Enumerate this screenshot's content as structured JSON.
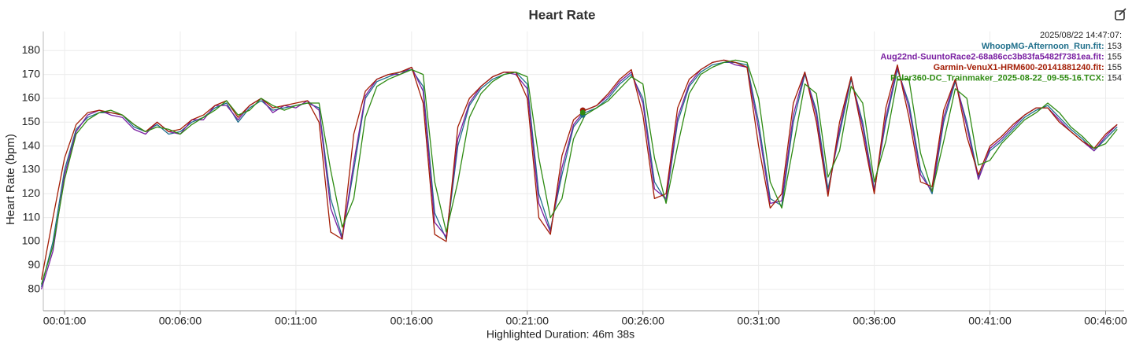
{
  "chart_data": {
    "type": "line",
    "title": "Heart Rate",
    "y_label": "Heart Rate (bpm)",
    "footer": "Highlighted Duration: 46m 38s",
    "x": [
      0,
      0.5,
      1,
      1.5,
      2,
      2.5,
      3,
      3.5,
      4,
      4.5,
      5,
      5.5,
      6,
      6.5,
      7,
      7.5,
      8,
      8.5,
      9,
      9.5,
      10,
      10.5,
      11,
      11.5,
      12,
      12.5,
      13,
      13.5,
      14,
      14.5,
      15,
      15.5,
      16,
      16.5,
      17,
      17.5,
      18,
      18.5,
      19,
      19.5,
      20,
      20.5,
      21,
      21.5,
      22,
      22.5,
      23,
      23.5,
      24,
      24.5,
      25,
      25.5,
      26,
      26.5,
      27,
      27.5,
      28,
      28.5,
      29,
      29.5,
      30,
      30.5,
      31,
      31.5,
      32,
      32.5,
      33,
      33.5,
      34,
      34.5,
      35,
      35.5,
      36,
      36.5,
      37,
      37.5,
      38,
      38.5,
      39,
      39.5,
      40,
      40.5,
      41,
      41.5,
      42,
      42.5,
      43,
      43.5,
      44,
      44.5,
      45,
      45.5,
      46,
      46.5
    ],
    "series": [
      {
        "name": "WhoopMG-Afternoon_Run.fit:",
        "color": "#1f6f8b",
        "values": [
          81,
          100,
          130,
          147,
          152,
          154,
          154,
          153,
          148,
          146,
          149,
          145,
          146,
          150,
          152,
          156,
          158,
          150,
          156,
          159,
          155,
          156,
          157,
          158,
          156,
          118,
          102,
          130,
          160,
          167,
          169,
          171,
          172,
          165,
          112,
          101,
          140,
          157,
          164,
          168,
          170,
          171,
          166,
          120,
          105,
          128,
          148,
          154,
          156,
          160,
          166,
          170,
          160,
          125,
          117,
          150,
          165,
          171,
          174,
          175,
          175,
          174,
          150,
          118,
          115,
          150,
          170,
          155,
          122,
          145,
          168,
          150,
          122,
          150,
          172,
          158,
          130,
          120,
          150,
          167,
          150,
          127,
          138,
          142,
          147,
          152,
          155,
          157,
          152,
          147,
          143,
          138,
          143,
          148
        ]
      },
      {
        "name": "Aug22nd-SuuntoRace2-68a86cc3b83fa5482f7381ea.fit:",
        "color": "#7a1fa2",
        "values": [
          80,
          96,
          128,
          146,
          153,
          155,
          153,
          152,
          147,
          145,
          150,
          146,
          145,
          151,
          151,
          157,
          157,
          151,
          157,
          160,
          154,
          157,
          156,
          159,
          155,
          114,
          101,
          133,
          161,
          168,
          170,
          170,
          173,
          163,
          108,
          102,
          143,
          158,
          165,
          169,
          171,
          170,
          164,
          116,
          104,
          131,
          149,
          155,
          157,
          161,
          167,
          171,
          158,
          122,
          118,
          152,
          166,
          172,
          175,
          176,
          174,
          173,
          147,
          116,
          117,
          153,
          171,
          153,
          120,
          147,
          169,
          148,
          121,
          152,
          173,
          156,
          128,
          121,
          152,
          168,
          148,
          126,
          139,
          143,
          148,
          153,
          156,
          156,
          151,
          146,
          142,
          138,
          144,
          149
        ]
      },
      {
        "name": "Garmin-VenuX1-HRM600-20141881240.fit:",
        "color": "#a31d05",
        "values": [
          84,
          110,
          135,
          149,
          154,
          155,
          154,
          153,
          149,
          146,
          150,
          146,
          147,
          151,
          153,
          157,
          159,
          152,
          157,
          160,
          156,
          157,
          158,
          159,
          150,
          104,
          101,
          145,
          163,
          168,
          170,
          171,
          173,
          158,
          103,
          100,
          148,
          160,
          165,
          169,
          171,
          171,
          160,
          110,
          103,
          136,
          151,
          155,
          157,
          162,
          168,
          172,
          153,
          118,
          120,
          156,
          168,
          172,
          175,
          176,
          175,
          173,
          140,
          114,
          120,
          158,
          171,
          150,
          119,
          150,
          169,
          145,
          120,
          156,
          174,
          152,
          125,
          123,
          155,
          168,
          144,
          128,
          140,
          144,
          149,
          153,
          156,
          156,
          150,
          146,
          142,
          139,
          145,
          149
        ]
      },
      {
        "name": "Polar360-DC_Trainmaker_2025-08-22_09-55-16.TCX:",
        "color": "#2e8b12",
        "values": [
          82,
          98,
          126,
          145,
          151,
          154,
          155,
          153,
          149,
          146,
          148,
          147,
          145,
          149,
          152,
          155,
          159,
          153,
          155,
          160,
          157,
          155,
          157,
          158,
          158,
          130,
          106,
          118,
          152,
          165,
          168,
          170,
          172,
          170,
          125,
          104,
          125,
          152,
          162,
          167,
          170,
          171,
          169,
          135,
          110,
          118,
          143,
          153,
          156,
          159,
          164,
          169,
          166,
          135,
          116,
          140,
          162,
          170,
          173,
          175,
          176,
          175,
          160,
          125,
          114,
          140,
          166,
          162,
          127,
          138,
          165,
          158,
          125,
          142,
          168,
          168,
          137,
          121,
          142,
          164,
          160,
          132,
          134,
          141,
          146,
          151,
          154,
          158,
          154,
          148,
          144,
          139,
          141,
          147
        ]
      }
    ],
    "xlim": [
      0.08,
      46.8
    ],
    "ylim": [
      71,
      188
    ],
    "xticks": [
      {
        "value": 1,
        "label": "00:01:00"
      },
      {
        "value": 6,
        "label": "00:06:00"
      },
      {
        "value": 11,
        "label": "00:11:00"
      },
      {
        "value": 16,
        "label": "00:16:00"
      },
      {
        "value": 21,
        "label": "00:21:00"
      },
      {
        "value": 26,
        "label": "00:26:00"
      },
      {
        "value": 31,
        "label": "00:31:00"
      },
      {
        "value": 36,
        "label": "00:36:00"
      },
      {
        "value": 41,
        "label": "00:41:00"
      },
      {
        "value": 46,
        "label": "00:46:00"
      }
    ],
    "yticks": [
      80,
      90,
      100,
      110,
      120,
      130,
      140,
      150,
      160,
      170,
      180
    ],
    "grid": true,
    "hover": {
      "label": "2025/08/22 14:47:07:",
      "x": 23.4,
      "values": [
        153,
        155,
        155,
        154
      ]
    }
  }
}
